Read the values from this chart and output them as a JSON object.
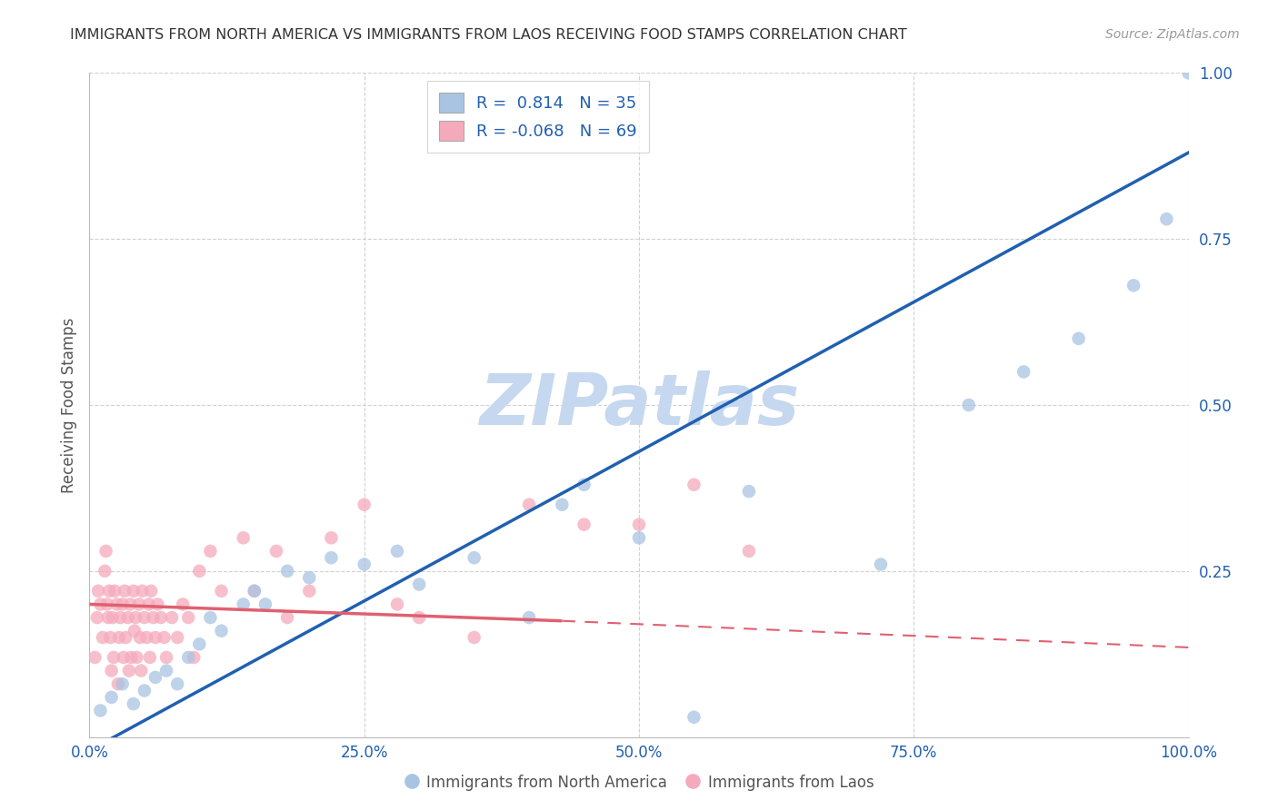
{
  "title": "IMMIGRANTS FROM NORTH AMERICA VS IMMIGRANTS FROM LAOS RECEIVING FOOD STAMPS CORRELATION CHART",
  "source": "Source: ZipAtlas.com",
  "ylabel": "Receiving Food Stamps",
  "xlabel": "",
  "xlim": [
    0,
    1
  ],
  "ylim": [
    0,
    1
  ],
  "xticks": [
    0.0,
    0.25,
    0.5,
    0.75,
    1.0
  ],
  "yticks": [
    0.25,
    0.5,
    0.75,
    1.0
  ],
  "xticklabels": [
    "0.0%",
    "25.0%",
    "50.0%",
    "75.0%",
    "100.0%"
  ],
  "yticklabels": [
    "25.0%",
    "50.0%",
    "75.0%",
    "100.0%"
  ],
  "blue_R": 0.814,
  "blue_N": 35,
  "pink_R": -0.068,
  "pink_N": 69,
  "blue_color": "#a8c4e2",
  "pink_color": "#f5aabc",
  "blue_line_color": "#2060b0",
  "pink_line_color": "#e06070",
  "watermark_color": "#c5d8f0",
  "legend_text_color": "#2060b0",
  "title_color": "#333333",
  "axis_color": "#2060b0",
  "grid_color": "#cccccc",
  "blue_scatter_x": [
    0.01,
    0.02,
    0.03,
    0.04,
    0.05,
    0.06,
    0.07,
    0.08,
    0.09,
    0.1,
    0.11,
    0.12,
    0.14,
    0.15,
    0.16,
    0.18,
    0.2,
    0.22,
    0.25,
    0.28,
    0.3,
    0.35,
    0.4,
    0.43,
    0.45,
    0.5,
    0.55,
    0.6,
    0.72,
    0.8,
    0.85,
    0.9,
    0.95,
    0.98,
    1.0
  ],
  "blue_scatter_y": [
    0.04,
    0.06,
    0.08,
    0.05,
    0.07,
    0.09,
    0.1,
    0.08,
    0.12,
    0.14,
    0.18,
    0.16,
    0.2,
    0.22,
    0.2,
    0.25,
    0.24,
    0.27,
    0.26,
    0.28,
    0.23,
    0.27,
    0.18,
    0.35,
    0.38,
    0.3,
    0.03,
    0.37,
    0.26,
    0.5,
    0.55,
    0.6,
    0.68,
    0.78,
    1.0
  ],
  "pink_scatter_x": [
    0.005,
    0.007,
    0.008,
    0.01,
    0.012,
    0.014,
    0.015,
    0.016,
    0.017,
    0.018,
    0.019,
    0.02,
    0.021,
    0.022,
    0.023,
    0.025,
    0.026,
    0.027,
    0.028,
    0.03,
    0.031,
    0.032,
    0.033,
    0.035,
    0.036,
    0.037,
    0.038,
    0.04,
    0.041,
    0.042,
    0.043,
    0.045,
    0.046,
    0.047,
    0.048,
    0.05,
    0.052,
    0.054,
    0.055,
    0.056,
    0.058,
    0.06,
    0.062,
    0.065,
    0.068,
    0.07,
    0.075,
    0.08,
    0.085,
    0.09,
    0.095,
    0.1,
    0.11,
    0.12,
    0.14,
    0.15,
    0.17,
    0.18,
    0.2,
    0.22,
    0.25,
    0.28,
    0.3,
    0.35,
    0.4,
    0.45,
    0.5,
    0.55,
    0.6
  ],
  "pink_scatter_y": [
    0.12,
    0.18,
    0.22,
    0.2,
    0.15,
    0.25,
    0.28,
    0.2,
    0.18,
    0.22,
    0.15,
    0.1,
    0.18,
    0.12,
    0.22,
    0.2,
    0.08,
    0.15,
    0.18,
    0.2,
    0.12,
    0.22,
    0.15,
    0.18,
    0.1,
    0.2,
    0.12,
    0.22,
    0.16,
    0.18,
    0.12,
    0.2,
    0.15,
    0.1,
    0.22,
    0.18,
    0.15,
    0.2,
    0.12,
    0.22,
    0.18,
    0.15,
    0.2,
    0.18,
    0.15,
    0.12,
    0.18,
    0.15,
    0.2,
    0.18,
    0.12,
    0.25,
    0.28,
    0.22,
    0.3,
    0.22,
    0.28,
    0.18,
    0.22,
    0.3,
    0.35,
    0.2,
    0.18,
    0.15,
    0.35,
    0.32,
    0.32,
    0.38,
    0.28
  ],
  "blue_trendline_x": [
    0.0,
    1.0
  ],
  "blue_trendline_y": [
    -0.02,
    0.88
  ],
  "pink_trendline_x0": 0.0,
  "pink_trendline_x1": 0.43,
  "pink_trendline_x2": 1.0,
  "pink_trendline_y0": 0.2,
  "pink_trendline_y1": 0.175,
  "pink_trendline_y2": 0.135
}
